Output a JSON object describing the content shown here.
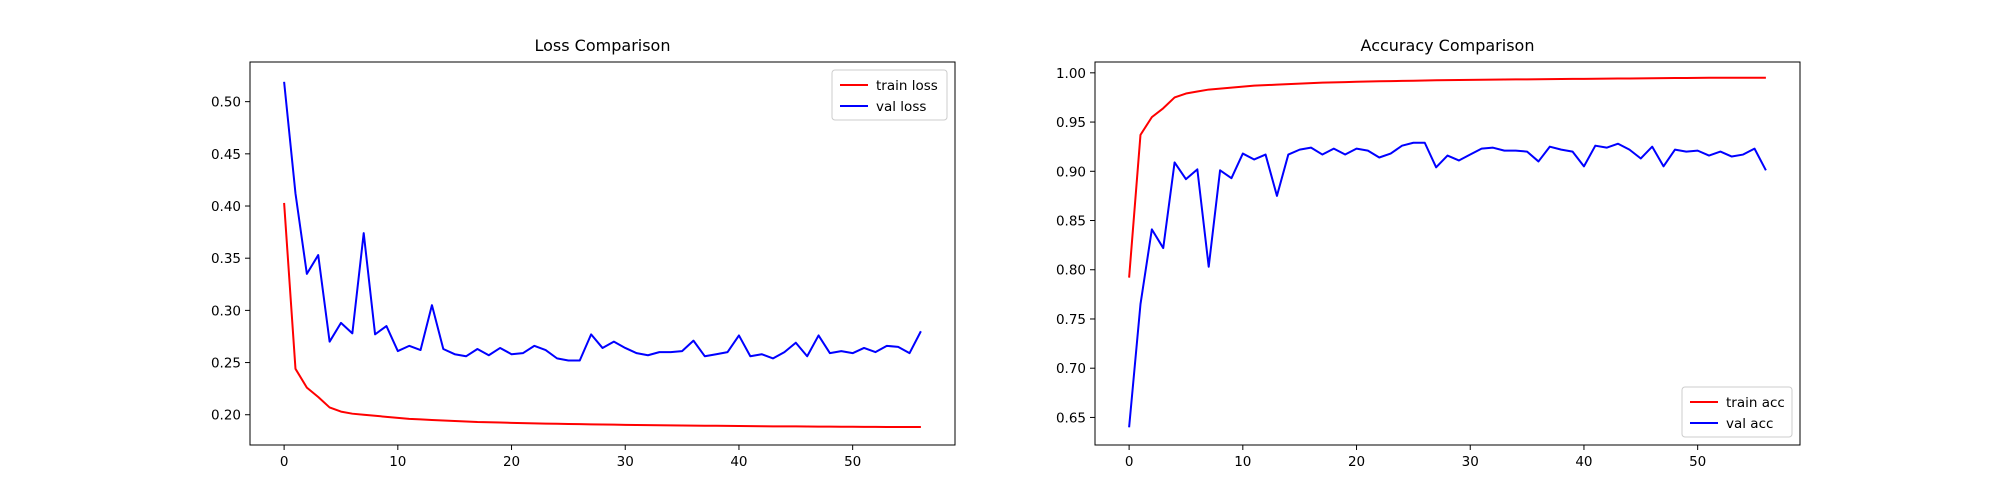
{
  "chart_data": [
    {
      "type": "line",
      "title": "Loss Comparison",
      "xlabel": "",
      "ylabel": "",
      "xlim": [
        -3,
        59
      ],
      "ylim": [
        0.171,
        0.538
      ],
      "xticks": [
        0,
        10,
        20,
        30,
        40,
        50
      ],
      "xtick_labels": [
        "0",
        "10",
        "20",
        "30",
        "40",
        "50"
      ],
      "yticks": [
        0.2,
        0.25,
        0.3,
        0.35,
        0.4,
        0.45,
        0.5
      ],
      "ytick_labels": [
        "0.20",
        "0.25",
        "0.30",
        "0.35",
        "0.40",
        "0.45",
        "0.50"
      ],
      "grid": false,
      "legend_position": "upper right",
      "series": [
        {
          "name": "train loss",
          "color": "#ff0000",
          "x": [
            0,
            1,
            2,
            3,
            4,
            5,
            6,
            7,
            8,
            9,
            10,
            11,
            12,
            13,
            14,
            15,
            16,
            17,
            18,
            19,
            20,
            21,
            22,
            23,
            24,
            25,
            26,
            27,
            28,
            29,
            30,
            31,
            32,
            33,
            34,
            35,
            36,
            37,
            38,
            39,
            40,
            41,
            42,
            43,
            44,
            45,
            46,
            47,
            48,
            49,
            50,
            51,
            52,
            53,
            54,
            55,
            56
          ],
          "values": [
            0.403,
            0.244,
            0.226,
            0.217,
            0.207,
            0.203,
            0.201,
            0.2,
            0.199,
            0.198,
            0.197,
            0.196,
            0.1955,
            0.195,
            0.1945,
            0.194,
            0.1935,
            0.193,
            0.1928,
            0.1925,
            0.1922,
            0.192,
            0.1917,
            0.1915,
            0.1913,
            0.1911,
            0.191,
            0.1908,
            0.1906,
            0.1905,
            0.1903,
            0.1902,
            0.19,
            0.1899,
            0.1898,
            0.1897,
            0.1896,
            0.1895,
            0.1894,
            0.1893,
            0.1892,
            0.1891,
            0.189,
            0.1889,
            0.1888,
            0.1888,
            0.1887,
            0.1886,
            0.1886,
            0.1885,
            0.1885,
            0.1884,
            0.1884,
            0.1883,
            0.1883,
            0.1882,
            0.1882
          ]
        },
        {
          "name": "val loss",
          "color": "#0000ff",
          "x": [
            0,
            1,
            2,
            3,
            4,
            5,
            6,
            7,
            8,
            9,
            10,
            11,
            12,
            13,
            14,
            15,
            16,
            17,
            18,
            19,
            20,
            21,
            22,
            23,
            24,
            25,
            26,
            27,
            28,
            29,
            30,
            31,
            32,
            33,
            34,
            35,
            36,
            37,
            38,
            39,
            40,
            41,
            42,
            43,
            44,
            45,
            46,
            47,
            48,
            49,
            50,
            51,
            52,
            53,
            54,
            55,
            56
          ],
          "values": [
            0.519,
            0.412,
            0.335,
            0.353,
            0.27,
            0.288,
            0.278,
            0.374,
            0.277,
            0.285,
            0.261,
            0.266,
            0.262,
            0.305,
            0.263,
            0.258,
            0.256,
            0.263,
            0.257,
            0.264,
            0.258,
            0.259,
            0.266,
            0.262,
            0.254,
            0.252,
            0.252,
            0.277,
            0.264,
            0.27,
            0.264,
            0.259,
            0.257,
            0.26,
            0.26,
            0.261,
            0.271,
            0.256,
            0.258,
            0.26,
            0.276,
            0.256,
            0.258,
            0.254,
            0.26,
            0.269,
            0.256,
            0.276,
            0.259,
            0.261,
            0.259,
            0.264,
            0.26,
            0.266,
            0.265,
            0.259,
            0.28
          ]
        }
      ]
    },
    {
      "type": "line",
      "title": "Accuracy Comparison",
      "xlabel": "",
      "ylabel": "",
      "xlim": [
        -3,
        59
      ],
      "ylim": [
        0.622,
        1.011
      ],
      "xticks": [
        0,
        10,
        20,
        30,
        40,
        50
      ],
      "xtick_labels": [
        "0",
        "10",
        "20",
        "30",
        "40",
        "50"
      ],
      "yticks": [
        0.65,
        0.7,
        0.75,
        0.8,
        0.85,
        0.9,
        0.95,
        1.0
      ],
      "ytick_labels": [
        "0.65",
        "0.70",
        "0.75",
        "0.80",
        "0.85",
        "0.90",
        "0.95",
        "1.00"
      ],
      "grid": false,
      "legend_position": "lower right",
      "series": [
        {
          "name": "train acc",
          "color": "#ff0000",
          "x": [
            0,
            1,
            2,
            3,
            4,
            5,
            6,
            7,
            8,
            9,
            10,
            11,
            12,
            13,
            14,
            15,
            16,
            17,
            18,
            19,
            20,
            21,
            22,
            23,
            24,
            25,
            26,
            27,
            28,
            29,
            30,
            31,
            32,
            33,
            34,
            35,
            36,
            37,
            38,
            39,
            40,
            41,
            42,
            43,
            44,
            45,
            46,
            47,
            48,
            49,
            50,
            51,
            52,
            53,
            54,
            55,
            56
          ],
          "values": [
            0.792,
            0.937,
            0.955,
            0.964,
            0.975,
            0.979,
            0.981,
            0.983,
            0.984,
            0.985,
            0.986,
            0.987,
            0.9875,
            0.988,
            0.9885,
            0.989,
            0.9895,
            0.99,
            0.9903,
            0.9906,
            0.9909,
            0.9912,
            0.9914,
            0.9916,
            0.9918,
            0.992,
            0.9922,
            0.9924,
            0.9926,
            0.9927,
            0.9929,
            0.993,
            0.9931,
            0.9932,
            0.9933,
            0.9934,
            0.9935,
            0.9936,
            0.9937,
            0.9938,
            0.9939,
            0.994,
            0.9941,
            0.9942,
            0.9943,
            0.9944,
            0.9945,
            0.9946,
            0.9947,
            0.9948,
            0.9949,
            0.995,
            0.995,
            0.995,
            0.995,
            0.995,
            0.995
          ]
        },
        {
          "name": "val acc",
          "color": "#0000ff",
          "x": [
            0,
            1,
            2,
            3,
            4,
            5,
            6,
            7,
            8,
            9,
            10,
            11,
            12,
            13,
            14,
            15,
            16,
            17,
            18,
            19,
            20,
            21,
            22,
            23,
            24,
            25,
            26,
            27,
            28,
            29,
            30,
            31,
            32,
            33,
            34,
            35,
            36,
            37,
            38,
            39,
            40,
            41,
            42,
            43,
            44,
            45,
            46,
            47,
            48,
            49,
            50,
            51,
            52,
            53,
            54,
            55,
            56
          ],
          "values": [
            0.64,
            0.765,
            0.841,
            0.822,
            0.909,
            0.892,
            0.902,
            0.803,
            0.901,
            0.893,
            0.918,
            0.912,
            0.917,
            0.875,
            0.917,
            0.922,
            0.924,
            0.917,
            0.923,
            0.917,
            0.923,
            0.921,
            0.914,
            0.918,
            0.926,
            0.929,
            0.929,
            0.904,
            0.916,
            0.911,
            0.917,
            0.923,
            0.924,
            0.921,
            0.921,
            0.92,
            0.91,
            0.925,
            0.922,
            0.92,
            0.905,
            0.926,
            0.924,
            0.928,
            0.922,
            0.913,
            0.925,
            0.905,
            0.922,
            0.92,
            0.921,
            0.916,
            0.92,
            0.915,
            0.917,
            0.923,
            0.901
          ]
        }
      ]
    }
  ]
}
